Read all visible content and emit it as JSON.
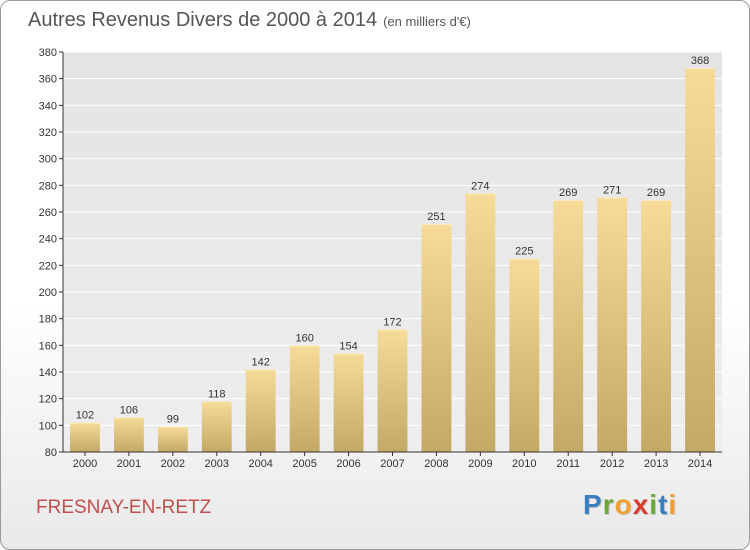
{
  "title": "Autres Revenus Divers de 2000 à 2014",
  "subtitle": "(en milliers d'€)",
  "commune": "FRESNAY-EN-RETZ",
  "logo": {
    "letters": [
      "P",
      "r",
      "o",
      "x",
      "i",
      "t",
      "i"
    ],
    "colors": [
      "#3a7fc1",
      "#6aa83a",
      "#f0a030",
      "#d83c2c",
      "#6aa83a",
      "#3a7fc1",
      "#f0a030"
    ]
  },
  "colors": {
    "bar_top": "#f6dc98",
    "bar_bottom": "#c4a865",
    "axis": "#333333",
    "grid": "#ffffff",
    "plot_bg_top": "#e4e4e4",
    "plot_bg_bottom": "#eeeeee"
  },
  "chart_data": {
    "type": "bar",
    "title": "Autres Revenus Divers de 2000 à 2014",
    "xlabel": "",
    "ylabel": "",
    "categories": [
      "2000",
      "2001",
      "2002",
      "2003",
      "2004",
      "2005",
      "2006",
      "2007",
      "2008",
      "2009",
      "2010",
      "2011",
      "2012",
      "2013",
      "2014"
    ],
    "values": [
      102,
      106,
      99,
      118,
      142,
      160,
      154,
      172,
      251,
      274,
      225,
      269,
      271,
      269,
      368
    ],
    "ylim": [
      80,
      380
    ],
    "yticks": [
      80,
      100,
      120,
      140,
      160,
      180,
      200,
      220,
      240,
      260,
      280,
      300,
      320,
      340,
      360,
      380
    ],
    "grid": true
  }
}
